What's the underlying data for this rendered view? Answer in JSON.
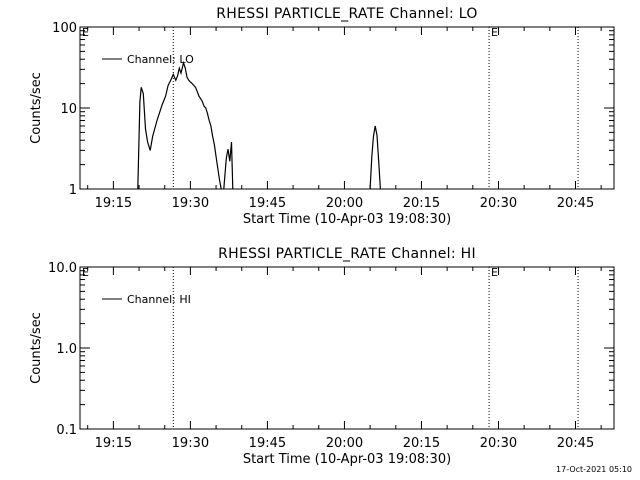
{
  "footer": {
    "timestamp": "17-Oct-2021 05:10"
  },
  "chart_data": [
    {
      "type": "line",
      "title": "RHESSI PARTICLE_RATE Channel: LO",
      "xlabel": "Start Time (10-Apr-03 19:08:30)",
      "ylabel": "Counts/sec",
      "yscale": "log",
      "ylim": [
        1,
        100
      ],
      "xlim": [
        "19:08:30",
        "20:52:30"
      ],
      "x_ticks": [
        "19:15",
        "19:30",
        "19:45",
        "20:00",
        "20:15",
        "20:30",
        "20:45"
      ],
      "y_ticks": [
        "1",
        "10",
        "100"
      ],
      "legend": {
        "entries": [
          "Channel: LO"
        ],
        "position": "top-left"
      },
      "vertical_markers": [
        {
          "time": "19:26:40",
          "label": ""
        },
        {
          "time": "20:28:10",
          "label": "E"
        },
        {
          "time": "20:45:30",
          "label": ""
        }
      ],
      "corner_label": "E",
      "series": [
        {
          "name": "Channel: LO",
          "segments": [
            [
              [
                "19:19:45",
                1
              ],
              [
                "19:20:10",
                12
              ],
              [
                "19:20:25",
                18
              ],
              [
                "19:20:50",
                15
              ],
              [
                "19:21:15",
                5.5
              ],
              [
                "19:21:40",
                3.8
              ],
              [
                "19:22:10",
                3
              ],
              [
                "19:22:40",
                4.5
              ],
              [
                "19:23:30",
                7
              ],
              [
                "19:24:30",
                11
              ],
              [
                "19:25:10",
                14
              ],
              [
                "19:25:40",
                19
              ],
              [
                "19:26:10",
                22
              ],
              [
                "19:26:40",
                26
              ],
              [
                "19:27:10",
                22
              ],
              [
                "19:27:30",
                25
              ],
              [
                "19:27:50",
                31
              ],
              [
                "19:28:10",
                27
              ],
              [
                "19:28:40",
                36
              ],
              [
                "19:29:00",
                31
              ],
              [
                "19:29:20",
                24
              ],
              [
                "19:29:40",
                22
              ],
              [
                "19:30:00",
                21
              ],
              [
                "19:30:20",
                20
              ],
              [
                "19:30:40",
                19
              ],
              [
                "19:31:00",
                18
              ],
              [
                "19:31:20",
                16
              ],
              [
                "19:31:40",
                14
              ],
              [
                "19:32:00",
                13
              ],
              [
                "19:32:20",
                12
              ],
              [
                "19:32:40",
                10.5
              ],
              [
                "19:33:00",
                10
              ],
              [
                "19:33:20",
                8.5
              ],
              [
                "19:33:40",
                7
              ],
              [
                "19:34:00",
                6
              ],
              [
                "19:34:20",
                4.5
              ],
              [
                "19:34:40",
                3.5
              ],
              [
                "19:35:00",
                2.5
              ],
              [
                "19:35:20",
                1.8
              ],
              [
                "19:35:40",
                1.3
              ],
              [
                "19:36:00",
                1
              ]
            ],
            [
              [
                "19:36:30",
                1
              ],
              [
                "19:37:00",
                2.4
              ],
              [
                "19:37:20",
                3.1
              ],
              [
                "19:37:40",
                2.2
              ],
              [
                "19:38:00",
                3.8
              ],
              [
                "19:38:15",
                1
              ]
            ],
            [
              [
                "20:05:00",
                1
              ],
              [
                "20:05:20",
                2.5
              ],
              [
                "20:05:40",
                4.5
              ],
              [
                "20:06:00",
                6
              ],
              [
                "20:06:20",
                4.6
              ],
              [
                "20:06:40",
                2.2
              ],
              [
                "20:07:00",
                1
              ]
            ]
          ]
        }
      ]
    },
    {
      "type": "line",
      "title": "RHESSI PARTICLE_RATE Channel: HI",
      "xlabel": "Start Time (10-Apr-03 19:08:30)",
      "ylabel": "Counts/sec",
      "yscale": "log",
      "ylim": [
        0.1,
        10
      ],
      "xlim": [
        "19:08:30",
        "20:52:30"
      ],
      "x_ticks": [
        "19:15",
        "19:30",
        "19:45",
        "20:00",
        "20:15",
        "20:30",
        "20:45"
      ],
      "y_ticks": [
        "0.1",
        "1.0",
        "10.0"
      ],
      "legend": {
        "entries": [
          "Channel: HI"
        ],
        "position": "top-left"
      },
      "vertical_markers": [
        {
          "time": "19:26:40",
          "label": ""
        },
        {
          "time": "20:28:10",
          "label": "E"
        },
        {
          "time": "20:45:30",
          "label": ""
        }
      ],
      "corner_label": "E",
      "series": [
        {
          "name": "Channel: HI",
          "segments": []
        }
      ]
    }
  ]
}
